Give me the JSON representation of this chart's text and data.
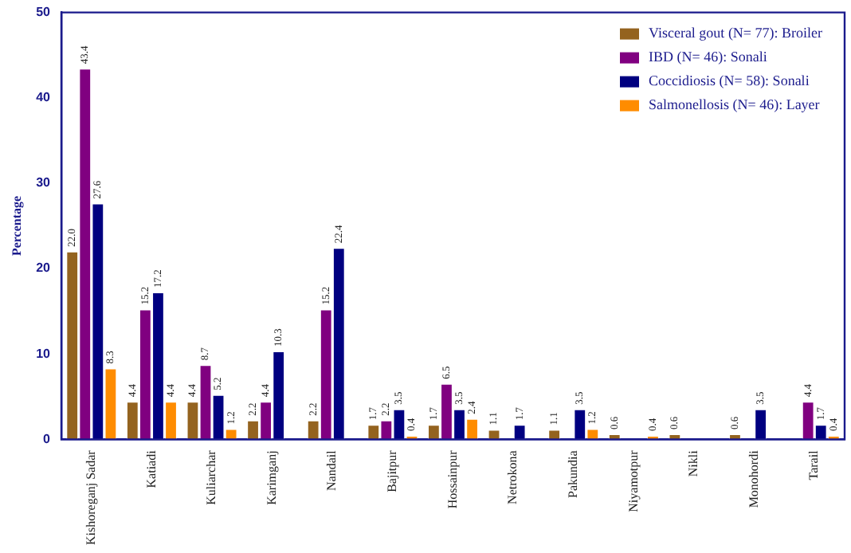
{
  "chart_data": {
    "type": "bar",
    "ylabel": "Percentage",
    "categories": [
      "Kishoreganj Sadar",
      "Katiadi",
      "Kuliarchar",
      "Karimganj",
      "Nandail",
      "Bajitpur",
      "Hossainpur",
      "Netrokona",
      "Pakundia",
      "Niyamotpur",
      "Nikli",
      "Monohordi",
      "Tarail"
    ],
    "series": [
      {
        "name": "Visceral gout (N= 77): Broiler",
        "color": "#94631f",
        "values": [
          22.0,
          4.4,
          4.4,
          2.2,
          2.2,
          1.7,
          1.7,
          1.1,
          1.1,
          0.6,
          0.6,
          0.6,
          null
        ],
        "value_labels": [
          "22.0",
          "4.4",
          "4.4",
          "2.2",
          "2.2",
          "1.7",
          "1.7",
          "1.1",
          "1.1",
          "0.6",
          "0.6",
          "0.6",
          null
        ]
      },
      {
        "name": "IBD (N= 46): Sonali",
        "color": "#800080",
        "values": [
          43.4,
          15.2,
          8.7,
          4.4,
          15.2,
          2.2,
          6.5,
          null,
          null,
          null,
          null,
          null,
          4.4
        ],
        "value_labels": [
          "43.4",
          "15.2",
          "8.7",
          "4.4",
          "15.2",
          "2.2",
          "6.5",
          null,
          null,
          null,
          null,
          null,
          "4.4"
        ]
      },
      {
        "name": "Coccidiosis (N= 58): Sonali",
        "color": "#000080",
        "values": [
          27.6,
          17.2,
          5.2,
          10.3,
          22.4,
          3.5,
          3.5,
          1.7,
          3.5,
          null,
          null,
          3.5,
          1.7
        ],
        "value_labels": [
          "27.6",
          "17.2",
          "5.2",
          "10.3",
          "22.4",
          "3.5",
          "3.5",
          "1.7",
          "3.5",
          null,
          null,
          "3.5",
          "1.7"
        ]
      },
      {
        "name": "Salmonellosis (N= 46): Layer",
        "color": "#ff8c00",
        "values": [
          8.3,
          4.4,
          1.2,
          null,
          null,
          0.4,
          2.4,
          null,
          1.2,
          0.4,
          null,
          null,
          0.4
        ],
        "value_labels": [
          "8.3",
          "4.4",
          "1.2",
          null,
          null,
          "0.4",
          "2.4",
          null,
          "1.2",
          "0.4",
          null,
          null,
          "0.4"
        ]
      }
    ],
    "ylim": [
      0,
      50
    ],
    "yticks": [
      0,
      10,
      20,
      30,
      40,
      50
    ],
    "grid": false,
    "legend": "top right"
  }
}
